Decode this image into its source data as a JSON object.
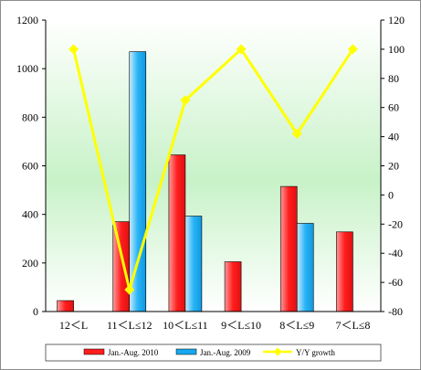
{
  "chart_data": {
    "type": "bar",
    "categories": [
      "12＜L",
      "11＜L≤12",
      "10＜L≤11",
      "9＜L≤10",
      "8＜L≤9",
      "7＜L≤8"
    ],
    "series": [
      {
        "name": "Jan.-Aug. 2010",
        "kind": "bar",
        "axis": "left",
        "color": "#ff1e1e",
        "values": [
          45,
          370,
          645,
          205,
          515,
          328
        ]
      },
      {
        "name": "Jan.-Aug. 2009",
        "kind": "bar",
        "axis": "left",
        "color": "#16a8f0",
        "values": [
          null,
          1070,
          393,
          null,
          363,
          null
        ]
      },
      {
        "name": "Y/Y growth",
        "kind": "line",
        "axis": "right",
        "color": "#ffff00",
        "values": [
          100,
          -65,
          65,
          100,
          42,
          100
        ]
      }
    ],
    "y_left": {
      "min": 0,
      "max": 1200,
      "step": 200,
      "ticks": [
        "0",
        "200",
        "400",
        "600",
        "800",
        "1000",
        "1200"
      ]
    },
    "y_right": {
      "min": -80,
      "max": 120,
      "step": 20,
      "ticks": [
        "-80",
        "-60",
        "-40",
        "-20",
        "0",
        "20",
        "40",
        "60",
        "80",
        "100",
        "120"
      ]
    },
    "legend_position": "bottom",
    "grid": false,
    "title": "",
    "xlabel": "",
    "ylabel": "",
    "plot_background": "gradient white-green"
  },
  "legend": {
    "items": [
      "Jan.-Aug. 2010",
      "Jan.-Aug. 2009",
      "Y/Y growth"
    ]
  }
}
